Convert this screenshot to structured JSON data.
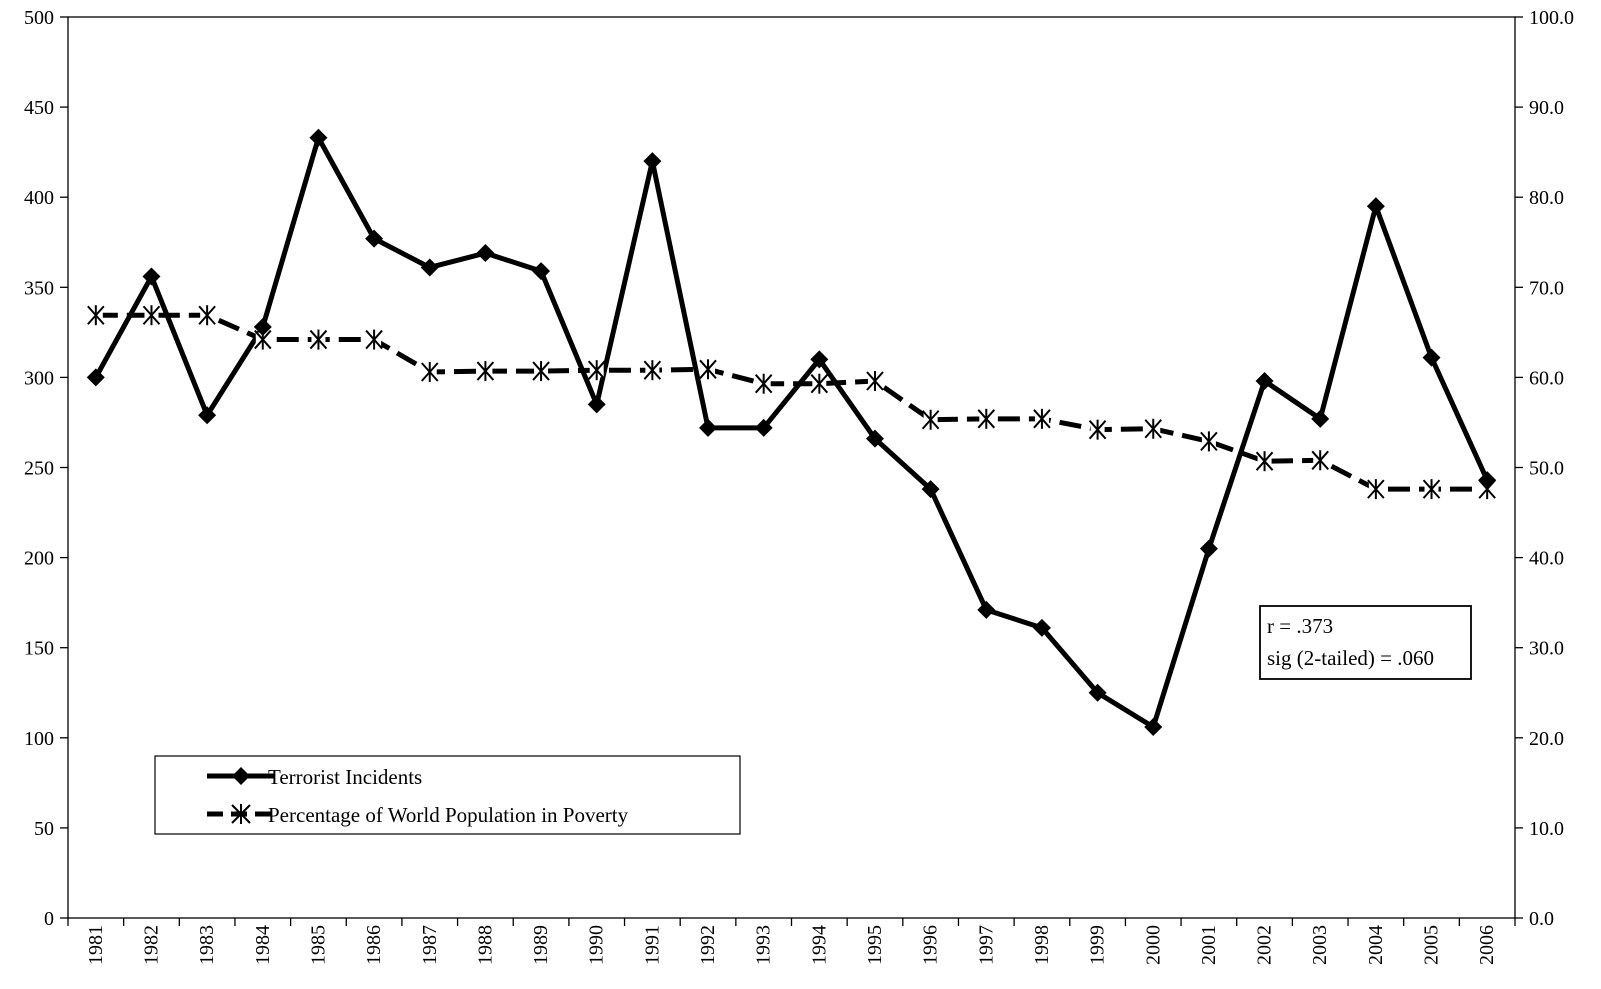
{
  "chart_data": {
    "type": "line",
    "categories": [
      "1981",
      "1982",
      "1983",
      "1984",
      "1985",
      "1986",
      "1987",
      "1988",
      "1989",
      "1990",
      "1991",
      "1992",
      "1993",
      "1994",
      "1995",
      "1996",
      "1997",
      "1998",
      "1999",
      "2000",
      "2001",
      "2002",
      "2003",
      "2004",
      "2005",
      "2006"
    ],
    "series": [
      {
        "name": "Terrorist Incidents",
        "axis": "left",
        "marker": "diamond",
        "line_style": "solid",
        "values": [
          300,
          356,
          279,
          328,
          433,
          377,
          361,
          369,
          359,
          285,
          420,
          272,
          272,
          310,
          266,
          238,
          171,
          161,
          125,
          106,
          205,
          298,
          277,
          395,
          311,
          243
        ]
      },
      {
        "name": "Percentage of World Population in Poverty",
        "axis": "right",
        "marker": "asterisk",
        "line_style": "dashed",
        "values": [
          66.9,
          66.9,
          66.9,
          64.2,
          64.2,
          64.2,
          60.6,
          60.7,
          60.7,
          60.8,
          60.8,
          60.9,
          59.3,
          59.3,
          59.6,
          55.3,
          55.4,
          55.4,
          54.2,
          54.3,
          52.9,
          50.7,
          50.8,
          47.6,
          47.6,
          47.6
        ]
      }
    ],
    "y_left": {
      "min": 0,
      "max": 500,
      "ticks": [
        "0",
        "50",
        "100",
        "150",
        "200",
        "250",
        "300",
        "350",
        "400",
        "450",
        "500"
      ]
    },
    "y_right": {
      "min": 0,
      "max": 100,
      "ticks": [
        "0.0",
        "10.0",
        "20.0",
        "30.0",
        "40.0",
        "50.0",
        "60.0",
        "70.0",
        "80.0",
        "90.0",
        "100.0"
      ]
    },
    "grid": false,
    "legend_position": "bottom-left",
    "annotation": {
      "lines": [
        "r = .373",
        "sig (2-tailed) = .060"
      ],
      "position": "right-middle"
    }
  },
  "colors": {
    "line": "#000000",
    "background": "#ffffff"
  }
}
